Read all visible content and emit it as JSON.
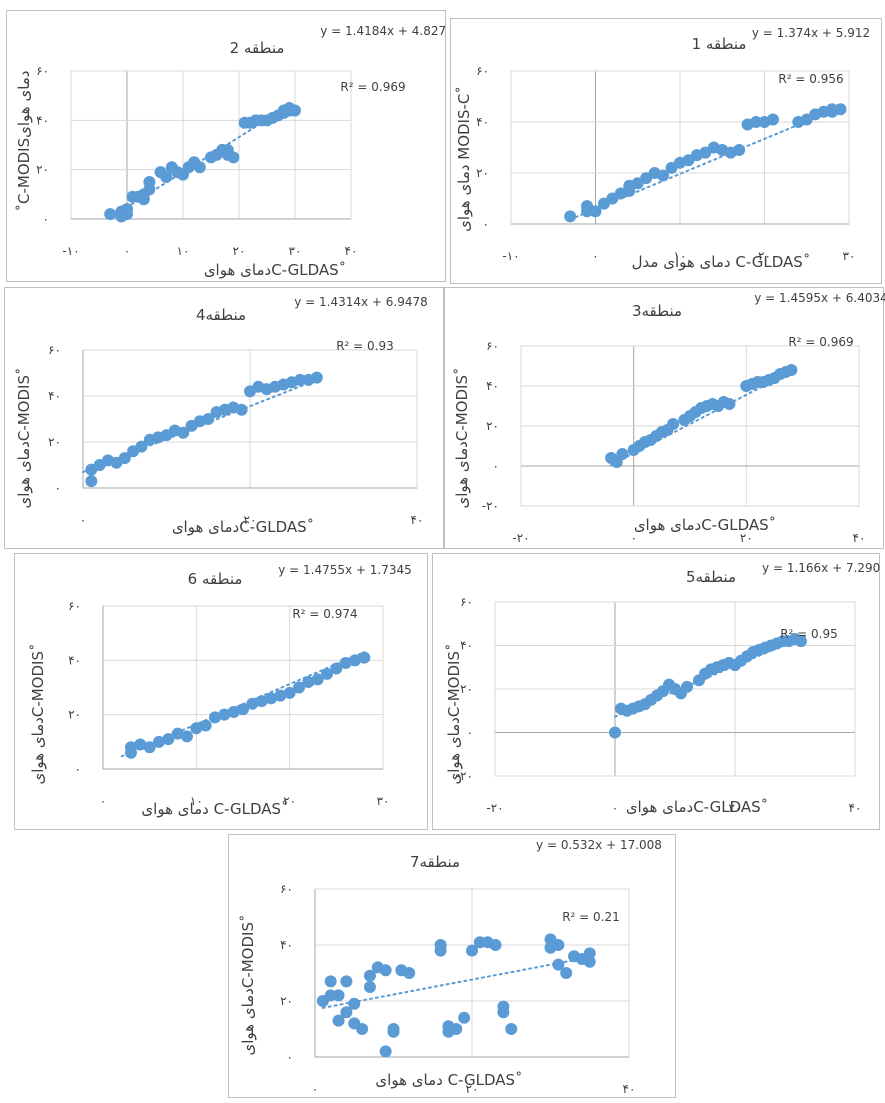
{
  "colors": {
    "point": "#5b9bd5",
    "trend": "#5b9bd5",
    "grid": "#d9d9d9",
    "axis": "#bfbfbf",
    "text": "#404040"
  },
  "chart_data": [
    {
      "type": "scatter",
      "title": "منطقه 2",
      "equation": "y = 1.4184x + 4.8276",
      "r2": "R² = 0.969",
      "xlabel": "دمای هوایC-GLDAS˚",
      "ylabel": "˚C-MODISدمای هوای",
      "xticks": [
        "-۱۰",
        "۰",
        "۱۰",
        "۲۰",
        "۳۰",
        "۴۰"
      ],
      "yticks": [
        "۰",
        "۲۰",
        "۴۰",
        "۶۰"
      ],
      "xlim": [
        -10,
        40
      ],
      "ylim": [
        0,
        60
      ],
      "trend": {
        "slope": 1.4184,
        "intercept": 4.8276,
        "x": [
          -1,
          29
        ]
      },
      "points": [
        [
          -3,
          2
        ],
        [
          -1,
          1
        ],
        [
          -1,
          3
        ],
        [
          0,
          2
        ],
        [
          0,
          4
        ],
        [
          1,
          9
        ],
        [
          2,
          9
        ],
        [
          3,
          8
        ],
        [
          3,
          10
        ],
        [
          4,
          12
        ],
        [
          4,
          15
        ],
        [
          6,
          19
        ],
        [
          7,
          17
        ],
        [
          8,
          21
        ],
        [
          9,
          19
        ],
        [
          10,
          18
        ],
        [
          11,
          21
        ],
        [
          12,
          23
        ],
        [
          13,
          21
        ],
        [
          15,
          25
        ],
        [
          16,
          26
        ],
        [
          17,
          28
        ],
        [
          18,
          28
        ],
        [
          18,
          26
        ],
        [
          19,
          25
        ],
        [
          21,
          39
        ],
        [
          22,
          39
        ],
        [
          23,
          40
        ],
        [
          24,
          40
        ],
        [
          25,
          40
        ],
        [
          26,
          41
        ],
        [
          27,
          42
        ],
        [
          28,
          43
        ],
        [
          28,
          44
        ],
        [
          29,
          44
        ],
        [
          29,
          45
        ],
        [
          30,
          44
        ]
      ]
    },
    {
      "type": "scatter",
      "title": "منطقه 1",
      "equation": "y = 1.374x + 5.912",
      "r2": "R² = 0.956",
      "xlabel": "دمای هوای مدل C-GLDAS˚",
      "ylabel": "دمای هوای MODIS-C˚",
      "xticks": [
        "-۱۰",
        "۰",
        "۱۰",
        "۲۰",
        "۳۰"
      ],
      "yticks": [
        "۰",
        "۲۰",
        "۴۰",
        "۶۰"
      ],
      "xlim": [
        -10,
        30
      ],
      "ylim": [
        0,
        60
      ],
      "trend": {
        "slope": 1.374,
        "intercept": 5.912,
        "x": [
          -3,
          29
        ]
      },
      "points": [
        [
          -3,
          3
        ],
        [
          -1,
          5
        ],
        [
          -1,
          7
        ],
        [
          0,
          5
        ],
        [
          1,
          8
        ],
        [
          2,
          10
        ],
        [
          3,
          12
        ],
        [
          4,
          15
        ],
        [
          4,
          13
        ],
        [
          5,
          16
        ],
        [
          6,
          18
        ],
        [
          7,
          20
        ],
        [
          8,
          19
        ],
        [
          9,
          22
        ],
        [
          10,
          24
        ],
        [
          11,
          25
        ],
        [
          12,
          27
        ],
        [
          13,
          28
        ],
        [
          14,
          30
        ],
        [
          15,
          29
        ],
        [
          16,
          28
        ],
        [
          17,
          29
        ],
        [
          18,
          39
        ],
        [
          19,
          40
        ],
        [
          20,
          40
        ],
        [
          21,
          41
        ],
        [
          24,
          40
        ],
        [
          25,
          41
        ],
        [
          26,
          43
        ],
        [
          27,
          44
        ],
        [
          28,
          45
        ],
        [
          28,
          44
        ],
        [
          29,
          45
        ]
      ]
    },
    {
      "type": "scatter",
      "title": "منطقه4",
      "equation": "y = 1.4314x + 6.9478",
      "r2": "R² = 0.93",
      "xlabel": "دمای هوایC-GLDAS˚",
      "ylabel": "دمای هوایC-MODIS˚",
      "xticks": [
        "۰",
        "۲۰",
        "۴۰"
      ],
      "yticks": [
        "۰",
        "۲۰",
        "۴۰",
        "۶۰"
      ],
      "xlim": [
        0,
        40
      ],
      "ylim": [
        0,
        60
      ],
      "trend": {
        "slope": 1.4314,
        "intercept": 6.9478,
        "x": [
          0,
          28
        ]
      },
      "points": [
        [
          1,
          3
        ],
        [
          1,
          8
        ],
        [
          2,
          10
        ],
        [
          3,
          12
        ],
        [
          4,
          11
        ],
        [
          5,
          13
        ],
        [
          6,
          16
        ],
        [
          7,
          18
        ],
        [
          8,
          21
        ],
        [
          9,
          22
        ],
        [
          10,
          23
        ],
        [
          11,
          25
        ],
        [
          12,
          24
        ],
        [
          13,
          27
        ],
        [
          14,
          29
        ],
        [
          15,
          30
        ],
        [
          16,
          33
        ],
        [
          17,
          34
        ],
        [
          18,
          35
        ],
        [
          19,
          34
        ],
        [
          20,
          42
        ],
        [
          21,
          44
        ],
        [
          22,
          43
        ],
        [
          23,
          44
        ],
        [
          24,
          45
        ],
        [
          25,
          46
        ],
        [
          26,
          47
        ],
        [
          27,
          47
        ],
        [
          28,
          48
        ]
      ]
    },
    {
      "type": "scatter",
      "title": "منطقه3",
      "equation": "y = 1.4595x + 6.4034",
      "r2": "R² = 0.969",
      "xlabel": "دمای هوایC-GLDAS˚",
      "ylabel": "دمای هوایC-MODIS˚",
      "xticks": [
        "-۲۰",
        "۰",
        "۲۰",
        "۴۰"
      ],
      "yticks": [
        "-۲۰",
        "۰",
        "۲۰",
        "۴۰",
        "۶۰"
      ],
      "xlim": [
        -20,
        40
      ],
      "ylim": [
        -20,
        60
      ],
      "trend": {
        "slope": 1.4595,
        "intercept": 6.4034,
        "x": [
          -4,
          28
        ]
      },
      "points": [
        [
          -4,
          4
        ],
        [
          -3,
          2
        ],
        [
          -2,
          6
        ],
        [
          0,
          8
        ],
        [
          1,
          10
        ],
        [
          2,
          12
        ],
        [
          3,
          13
        ],
        [
          4,
          15
        ],
        [
          5,
          17
        ],
        [
          6,
          18
        ],
        [
          7,
          21
        ],
        [
          9,
          23
        ],
        [
          10,
          25
        ],
        [
          11,
          27
        ],
        [
          12,
          29
        ],
        [
          13,
          30
        ],
        [
          14,
          31
        ],
        [
          15,
          30
        ],
        [
          16,
          32
        ],
        [
          17,
          31
        ],
        [
          20,
          40
        ],
        [
          21,
          41
        ],
        [
          22,
          42
        ],
        [
          23,
          42
        ],
        [
          24,
          43
        ],
        [
          25,
          44
        ],
        [
          26,
          46
        ],
        [
          27,
          47
        ],
        [
          28,
          48
        ]
      ]
    },
    {
      "type": "scatter",
      "title": "منطقه 6",
      "equation": "y = 1.4755x + 1.7345",
      "r2": "R² = 0.974",
      "xlabel": "دمای هوای C-GLDAS˚",
      "ylabel": "دمای هوایC-MODIS˚",
      "xticks": [
        "۰",
        "۱۰",
        "۲۰",
        "۳۰"
      ],
      "yticks": [
        "۰",
        "۲۰",
        "۴۰",
        "۶۰"
      ],
      "xlim": [
        0,
        30
      ],
      "ylim": [
        0,
        60
      ],
      "trend": {
        "slope": 1.4755,
        "intercept": 1.7345,
        "x": [
          2,
          28
        ]
      },
      "points": [
        [
          3,
          6
        ],
        [
          3,
          8
        ],
        [
          4,
          9
        ],
        [
          5,
          8
        ],
        [
          6,
          10
        ],
        [
          7,
          11
        ],
        [
          8,
          13
        ],
        [
          9,
          12
        ],
        [
          10,
          15
        ],
        [
          11,
          16
        ],
        [
          12,
          19
        ],
        [
          13,
          20
        ],
        [
          14,
          21
        ],
        [
          15,
          22
        ],
        [
          16,
          24
        ],
        [
          17,
          25
        ],
        [
          18,
          26
        ],
        [
          19,
          27
        ],
        [
          20,
          28
        ],
        [
          21,
          30
        ],
        [
          22,
          32
        ],
        [
          23,
          33
        ],
        [
          24,
          35
        ],
        [
          25,
          37
        ],
        [
          26,
          39
        ],
        [
          27,
          40
        ],
        [
          28,
          41
        ]
      ]
    },
    {
      "type": "scatter",
      "title": "منطقه5",
      "equation": "y = 1.166x + 7.2905",
      "r2": "R² = 0.95",
      "xlabel": "دمای هوایC-GLDAS˚",
      "ylabel": "دمای هوایC-MODIS˚",
      "xticks": [
        "-۲۰",
        "۰",
        "۲۰",
        "۴۰"
      ],
      "yticks": [
        "-۲۰",
        "۰",
        "۲۰",
        "۴۰",
        "۶۰"
      ],
      "xlim": [
        -20,
        40
      ],
      "ylim": [
        -20,
        60
      ],
      "trend": {
        "slope": 1.166,
        "intercept": 7.2905,
        "x": [
          0,
          32
        ]
      },
      "points": [
        [
          0,
          0
        ],
        [
          1,
          11
        ],
        [
          2,
          10
        ],
        [
          3,
          11
        ],
        [
          4,
          12
        ],
        [
          5,
          13
        ],
        [
          6,
          15
        ],
        [
          7,
          17
        ],
        [
          8,
          19
        ],
        [
          9,
          22
        ],
        [
          10,
          20
        ],
        [
          11,
          18
        ],
        [
          12,
          21
        ],
        [
          14,
          24
        ],
        [
          15,
          27
        ],
        [
          16,
          29
        ],
        [
          17,
          30
        ],
        [
          18,
          31
        ],
        [
          19,
          32
        ],
        [
          20,
          31
        ],
        [
          21,
          33
        ],
        [
          22,
          35
        ],
        [
          23,
          37
        ],
        [
          24,
          38
        ],
        [
          25,
          39
        ],
        [
          26,
          40
        ],
        [
          27,
          41
        ],
        [
          28,
          42
        ],
        [
          29,
          42
        ],
        [
          30,
          43
        ],
        [
          31,
          42
        ]
      ]
    },
    {
      "type": "scatter",
      "title": "منطقه7",
      "equation": "y = 0.532x + 17.008",
      "r2": "R² = 0.21",
      "xlabel": "دمای هوای C-GLDAS˚",
      "ylabel": "دمای هوایC-MODIS˚",
      "xticks": [
        "۰",
        "۲۰",
        "۴۰"
      ],
      "yticks": [
        "۰",
        "۲۰",
        "۴۰",
        "۶۰"
      ],
      "xlim": [
        0,
        40
      ],
      "ylim": [
        0,
        60
      ],
      "trend": {
        "slope": 0.532,
        "intercept": 17.008,
        "x": [
          1,
          33
        ]
      },
      "points": [
        [
          1,
          20
        ],
        [
          2,
          27
        ],
        [
          2,
          22
        ],
        [
          3,
          13
        ],
        [
          3,
          22
        ],
        [
          4,
          16
        ],
        [
          4,
          27
        ],
        [
          5,
          19
        ],
        [
          5,
          12
        ],
        [
          6,
          10
        ],
        [
          7,
          29
        ],
        [
          7,
          25
        ],
        [
          8,
          32
        ],
        [
          9,
          31
        ],
        [
          9,
          2
        ],
        [
          10,
          9
        ],
        [
          10,
          10
        ],
        [
          11,
          31
        ],
        [
          12,
          30
        ],
        [
          16,
          38
        ],
        [
          16,
          40
        ],
        [
          17,
          9
        ],
        [
          17,
          11
        ],
        [
          18,
          10
        ],
        [
          19,
          14
        ],
        [
          20,
          38
        ],
        [
          21,
          41
        ],
        [
          22,
          41
        ],
        [
          23,
          40
        ],
        [
          24,
          18
        ],
        [
          24,
          16
        ],
        [
          25,
          10
        ],
        [
          30,
          42
        ],
        [
          30,
          39
        ],
        [
          31,
          40
        ],
        [
          31,
          33
        ],
        [
          32,
          30
        ],
        [
          33,
          36
        ],
        [
          34,
          35
        ],
        [
          35,
          37
        ],
        [
          35,
          34
        ]
      ]
    }
  ]
}
